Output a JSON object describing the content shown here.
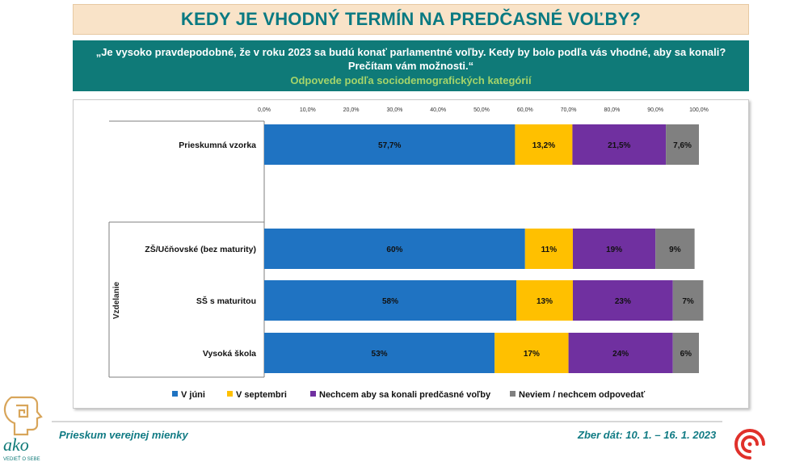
{
  "header": {
    "title": "KEDY JE VHODNÝ TERMÍN NA PREDČASNÉ VOĽBY?",
    "question_line1": "„Je vysoko pravdepodobné, že v roku 2023 sa budú konať parlamentné voľby. Kedy by bolo podľa vás vhodné, aby sa konali?",
    "question_line2": "Prečítam vám možnosti.“",
    "subtitle": "Odpovede podľa sociodemografických kategórií"
  },
  "footer": {
    "left": "Prieskum verejnej mienky",
    "right": "Zber dát: 10. 1. – 16. 1. 2023",
    "logo_text": "ako",
    "logo_tagline": "VEDIEŤ O SEBE"
  },
  "chart_data": {
    "type": "bar",
    "orientation": "horizontal",
    "stacked": true,
    "xlim": [
      0,
      100
    ],
    "x_ticks": [
      "0,0%",
      "10,0%",
      "20,0%",
      "30,0%",
      "40,0%",
      "50,0%",
      "60,0%",
      "70,0%",
      "80,0%",
      "90,0%",
      "100,0%"
    ],
    "group_label": "Vzdelanie",
    "categories": [
      "Prieskumná vzorka",
      "ZŠ/Učňovské (bez maturity)",
      "SŠ s maturitou",
      "Vysoká škola"
    ],
    "series": [
      {
        "name": "V júni",
        "color": "#1f73c2",
        "values": [
          57.7,
          60,
          58,
          53
        ],
        "labels": [
          "57,7%",
          "60%",
          "58%",
          "53%"
        ]
      },
      {
        "name": "V septembri",
        "color": "#ffc000",
        "values": [
          13.2,
          11,
          13,
          17
        ],
        "labels": [
          "13,2%",
          "11%",
          "13%",
          "17%"
        ]
      },
      {
        "name": "Nechcem aby sa konali predčasné voľby",
        "color": "#7030a0",
        "values": [
          21.5,
          19,
          23,
          24
        ],
        "labels": [
          "21,5%",
          "19%",
          "23%",
          "24%"
        ]
      },
      {
        "name": "Neviem / nechcem odpovedať",
        "color": "#808080",
        "values": [
          7.6,
          9,
          7,
          6
        ],
        "labels": [
          "7,6%",
          "9%",
          "7%",
          "6%"
        ]
      }
    ],
    "legend_position": "bottom",
    "grid": false
  }
}
